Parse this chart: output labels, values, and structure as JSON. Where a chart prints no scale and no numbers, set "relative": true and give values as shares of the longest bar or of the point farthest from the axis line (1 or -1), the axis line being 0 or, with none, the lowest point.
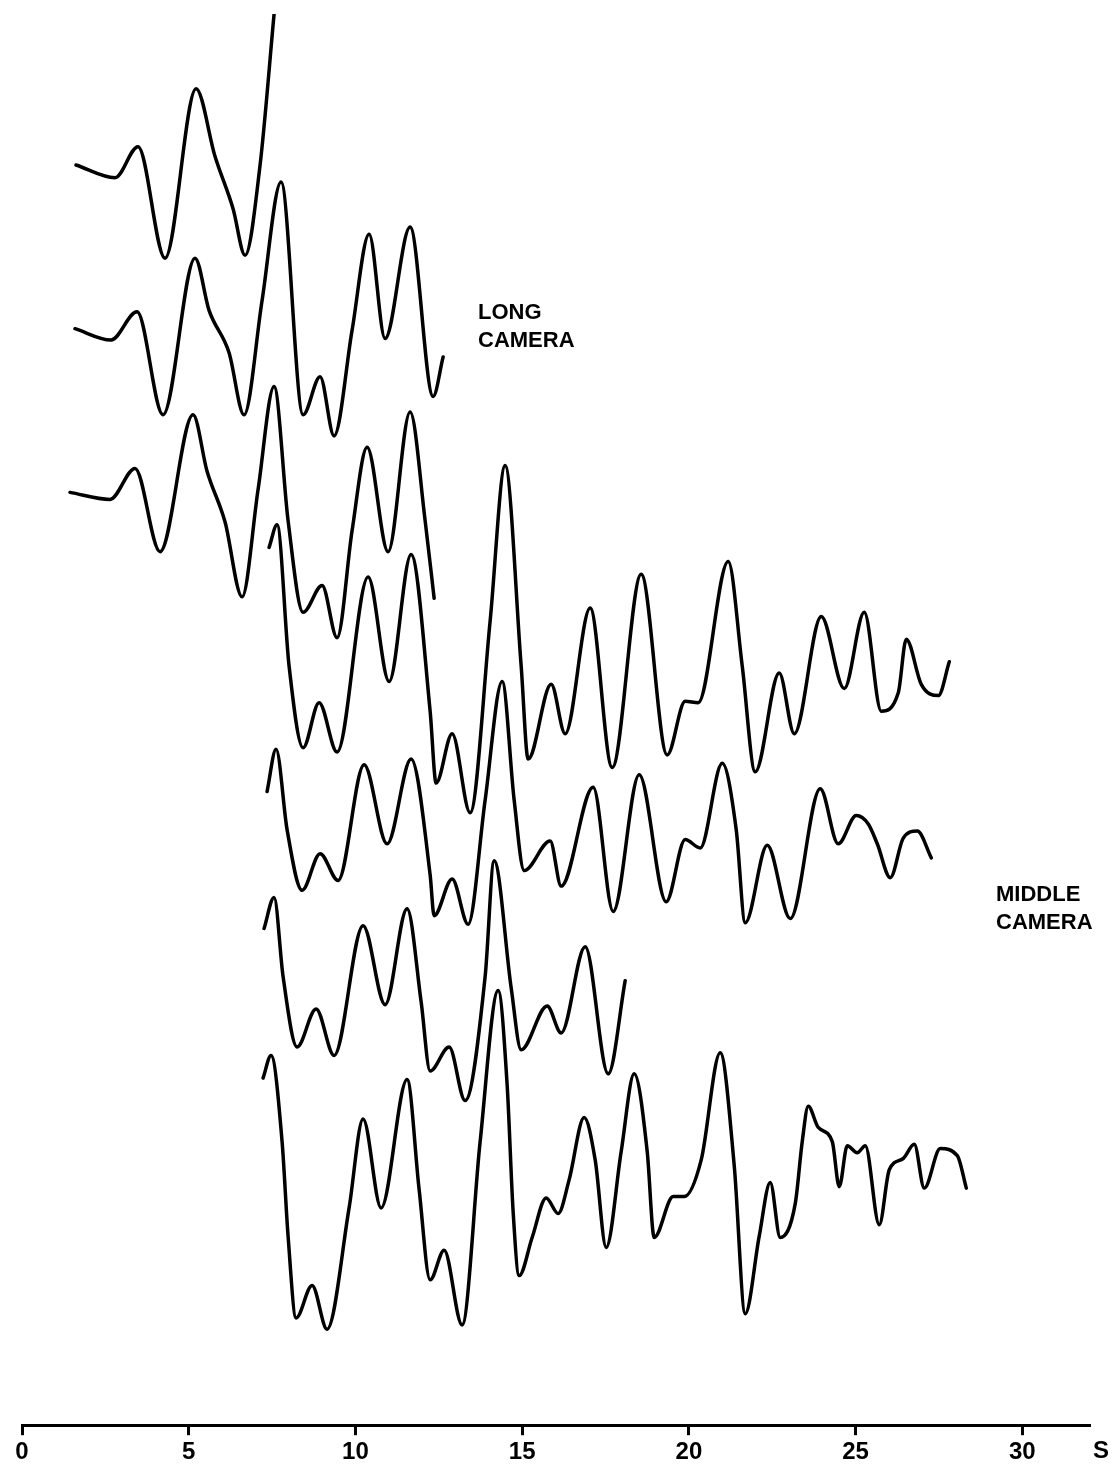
{
  "chart_data": {
    "type": "line",
    "relative": true,
    "xlabel": "S",
    "xlim": [
      0,
      32
    ],
    "xticks": [
      0,
      5,
      10,
      15,
      20,
      25,
      30
    ],
    "grid": false,
    "legend": false,
    "marker": "none",
    "line_style": "solid",
    "annotations": [
      "LONG CAMERA",
      "MIDDLE CAMERA"
    ],
    "series": [
      {
        "color": "#000000",
        "x": [
          1.62,
          2.79,
          3.48,
          4.29,
          5.22,
          5.79,
          6.33,
          6.69,
          7.14,
          7.56
        ],
        "values": [
          0.893,
          0.884,
          0.906,
          0.827,
          0.947,
          0.899,
          0.862,
          0.829,
          0.893,
          1.0
        ]
      },
      {
        "color": "#000000",
        "x": [
          1.59,
          2.67,
          3.45,
          4.23,
          5.19,
          5.61,
          6.21,
          6.66,
          7.2,
          7.77,
          8.43,
          8.94,
          9.36,
          9.9,
          10.41,
          10.89,
          11.64,
          12.33,
          12.63
        ],
        "values": [
          0.777,
          0.769,
          0.789,
          0.716,
          0.827,
          0.79,
          0.76,
          0.716,
          0.797,
          0.881,
          0.716,
          0.743,
          0.701,
          0.776,
          0.844,
          0.77,
          0.849,
          0.729,
          0.757
        ]
      },
      {
        "color": "#000000",
        "x": [
          1.44,
          2.64,
          3.39,
          4.14,
          5.13,
          5.55,
          6.09,
          6.6,
          7.08,
          7.56,
          7.98,
          8.43,
          9.0,
          9.45,
          9.9,
          10.35,
          10.98,
          11.64,
          12.09,
          12.36
        ],
        "values": [
          0.661,
          0.656,
          0.678,
          0.619,
          0.716,
          0.676,
          0.64,
          0.587,
          0.663,
          0.736,
          0.641,
          0.576,
          0.595,
          0.558,
          0.634,
          0.693,
          0.619,
          0.718,
          0.641,
          0.586
        ]
      },
      {
        "color": "#000000",
        "x": [
          7.41,
          7.65,
          8.01,
          8.43,
          8.91,
          9.45,
          10.38,
          11.01,
          11.67,
          12.24,
          12.42,
          12.9,
          13.44,
          14.04,
          14.49,
          14.97,
          15.18,
          15.87,
          16.29,
          17.04,
          17.7,
          18.57,
          19.35,
          19.89,
          20.28,
          21.18,
          21.6,
          21.99,
          22.71,
          23.16,
          23.97,
          24.66,
          25.26,
          25.77,
          26.28,
          26.52,
          26.97,
          27.48,
          27.81
        ],
        "values": [
          0.622,
          0.638,
          0.538,
          0.48,
          0.512,
          0.477,
          0.601,
          0.527,
          0.617,
          0.506,
          0.455,
          0.49,
          0.434,
          0.57,
          0.68,
          0.538,
          0.472,
          0.525,
          0.49,
          0.579,
          0.466,
          0.603,
          0.475,
          0.513,
          0.512,
          0.612,
          0.538,
          0.463,
          0.533,
          0.49,
          0.573,
          0.522,
          0.576,
          0.506,
          0.519,
          0.557,
          0.525,
          0.517,
          0.541
        ]
      },
      {
        "color": "#000000",
        "x": [
          7.35,
          7.62,
          7.95,
          8.4,
          8.94,
          9.48,
          10.26,
          10.95,
          11.67,
          12.24,
          12.36,
          12.9,
          13.38,
          13.89,
          14.4,
          14.76,
          15.06,
          15.84,
          16.17,
          17.13,
          17.73,
          18.51,
          19.32,
          19.89,
          20.34,
          21.0,
          21.42,
          21.69,
          22.35,
          23.04,
          23.94,
          24.48,
          25.02,
          25.38,
          25.65,
          26.04,
          26.43,
          26.85,
          27.27
        ],
        "values": [
          0.449,
          0.479,
          0.422,
          0.379,
          0.405,
          0.386,
          0.468,
          0.412,
          0.472,
          0.39,
          0.361,
          0.387,
          0.355,
          0.443,
          0.527,
          0.443,
          0.393,
          0.414,
          0.382,
          0.452,
          0.364,
          0.461,
          0.371,
          0.415,
          0.409,
          0.469,
          0.422,
          0.356,
          0.411,
          0.359,
          0.451,
          0.412,
          0.432,
          0.426,
          0.412,
          0.388,
          0.416,
          0.421,
          0.402
        ]
      },
      {
        "color": "#000000",
        "x": [
          7.26,
          7.56,
          7.83,
          8.25,
          8.82,
          9.36,
          10.23,
          10.89,
          11.55,
          11.97,
          12.24,
          12.81,
          13.29,
          13.89,
          14.16,
          14.67,
          14.97,
          15.75,
          16.17,
          16.89,
          17.58,
          18.09
        ],
        "values": [
          0.352,
          0.374,
          0.318,
          0.268,
          0.295,
          0.262,
          0.354,
          0.298,
          0.366,
          0.3,
          0.251,
          0.268,
          0.23,
          0.318,
          0.4,
          0.31,
          0.266,
          0.297,
          0.278,
          0.339,
          0.249,
          0.315
        ]
      },
      {
        "color": "#000000",
        "x": [
          7.23,
          7.47,
          7.8,
          7.98,
          8.22,
          8.7,
          9.15,
          9.81,
          10.23,
          10.77,
          11.55,
          11.91,
          12.24,
          12.66,
          13.2,
          13.74,
          14.28,
          14.55,
          14.73,
          14.91,
          15.3,
          15.72,
          16.08,
          16.41,
          16.86,
          17.19,
          17.52,
          17.97,
          18.36,
          18.75,
          18.96,
          19.53,
          19.86,
          20.37,
          20.94,
          21.36,
          21.69,
          22.11,
          22.44,
          22.74,
          23.19,
          23.4,
          23.58,
          23.88,
          24.3,
          24.51,
          24.75,
          25.05,
          25.29,
          25.71,
          26.01,
          26.43,
          26.76,
          27.06,
          27.54,
          28.05,
          28.32
        ],
        "values": [
          0.246,
          0.262,
          0.201,
          0.134,
          0.076,
          0.099,
          0.068,
          0.154,
          0.217,
          0.154,
          0.245,
          0.167,
          0.103,
          0.124,
          0.071,
          0.201,
          0.308,
          0.241,
          0.151,
          0.106,
          0.133,
          0.161,
          0.15,
          0.174,
          0.218,
          0.188,
          0.126,
          0.194,
          0.249,
          0.194,
          0.133,
          0.162,
          0.162,
          0.188,
          0.264,
          0.184,
          0.079,
          0.134,
          0.172,
          0.133,
          0.157,
          0.201,
          0.226,
          0.211,
          0.201,
          0.169,
          0.198,
          0.193,
          0.198,
          0.142,
          0.181,
          0.189,
          0.199,
          0.168,
          0.196,
          0.191,
          0.168
        ]
      }
    ]
  }
}
